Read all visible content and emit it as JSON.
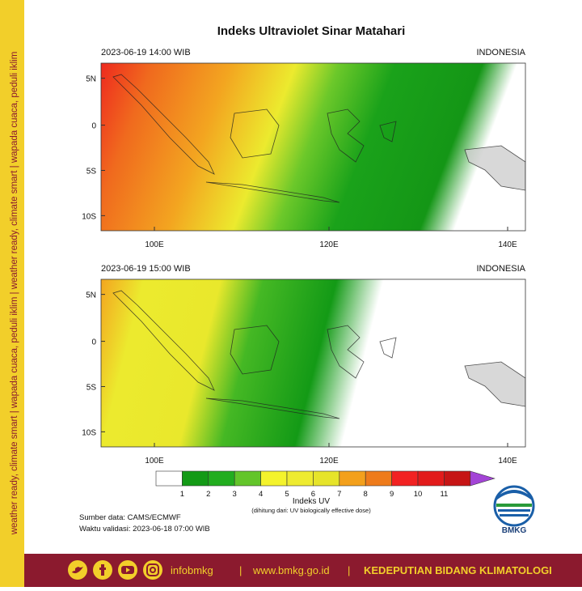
{
  "side_banner": "weather ready, climate smart | wapada cuaca, peduli iklim | weather ready, climate smart | wapada cuaca, peduli iklim",
  "title": "Indeks Ultraviolet Sinar Matahari",
  "maps": [
    {
      "time": "2023-06-19  14:00 WIB",
      "region": "INDONESIA",
      "lat_labels": [
        "5N",
        "0",
        "5S",
        "10S"
      ],
      "lon_labels": [
        "100E",
        "120E",
        "140E"
      ]
    },
    {
      "time": "2023-06-19  15:00 WIB",
      "region": "INDONESIA",
      "lat_labels": [
        "5N",
        "0",
        "5S",
        "10S"
      ],
      "lon_labels": [
        "100E",
        "120E",
        "140E"
      ]
    }
  ],
  "colorbar": {
    "labels": [
      "1",
      "2",
      "3",
      "4",
      "5",
      "6",
      "7",
      "8",
      "9",
      "10",
      "11"
    ],
    "colors": [
      "#ffffff",
      "#139a16",
      "#22ad1f",
      "#63c52a",
      "#f4f32c",
      "#eeeb30",
      "#e6e42a",
      "#f3a01c",
      "#ee7b1b",
      "#f22222",
      "#e21b1b",
      "#c61515",
      "#a344d6"
    ],
    "title": "Indeks UV",
    "subtitle": "(dihitung dari: UV biologically effective dose)"
  },
  "source": "Sumber data: CAMS/ECMWF",
  "validity": "Waktu validasi: 2023-06-18 07:00 WIB",
  "logo": "BMKG",
  "footer": {
    "handle": "infobmkg",
    "website": "www.bmkg.go.id",
    "department": "KEDEPUTIAN BIDANG KLIMATOLOGI"
  }
}
